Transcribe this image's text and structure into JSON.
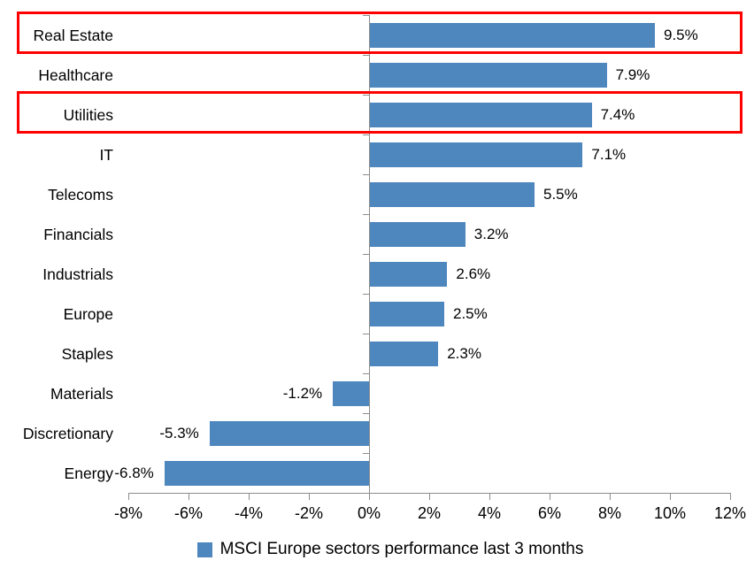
{
  "chart_data": {
    "type": "bar",
    "orientation": "horizontal",
    "title": "",
    "categories": [
      "Real Estate",
      "Healthcare",
      "Utilities",
      "IT",
      "Telecoms",
      "Financials",
      "Industrials",
      "Europe",
      "Staples",
      "Materials",
      "Discretionary",
      "Energy"
    ],
    "values": [
      9.5,
      7.9,
      7.4,
      7.1,
      5.5,
      3.2,
      2.6,
      2.5,
      2.3,
      -1.2,
      -5.3,
      -6.8
    ],
    "value_labels": [
      "9.5%",
      "7.9%",
      "7.4%",
      "7.1%",
      "5.5%",
      "3.2%",
      "2.6%",
      "2.5%",
      "2.3%",
      "-1.2%",
      "-5.3%",
      "-6.8%"
    ],
    "x_axis": {
      "min": -8,
      "max": 12,
      "step": 2,
      "unit": "%",
      "tick_labels": [
        "-8%",
        "-6%",
        "-4%",
        "-2%",
        "0%",
        "2%",
        "4%",
        "6%",
        "8%",
        "10%",
        "12%"
      ]
    },
    "legend": {
      "position": "bottom",
      "entries": [
        {
          "label": "MSCI Europe sectors performance last 3 months",
          "marker_color": "#4E86BE"
        }
      ]
    },
    "grid": false,
    "bar_color": "#4E86BE",
    "axis_color": "#8C8C8C",
    "text_color": "#000000",
    "highlight": {
      "color": "#FF0000",
      "categories": [
        "Real Estate",
        "Utilities"
      ]
    }
  }
}
